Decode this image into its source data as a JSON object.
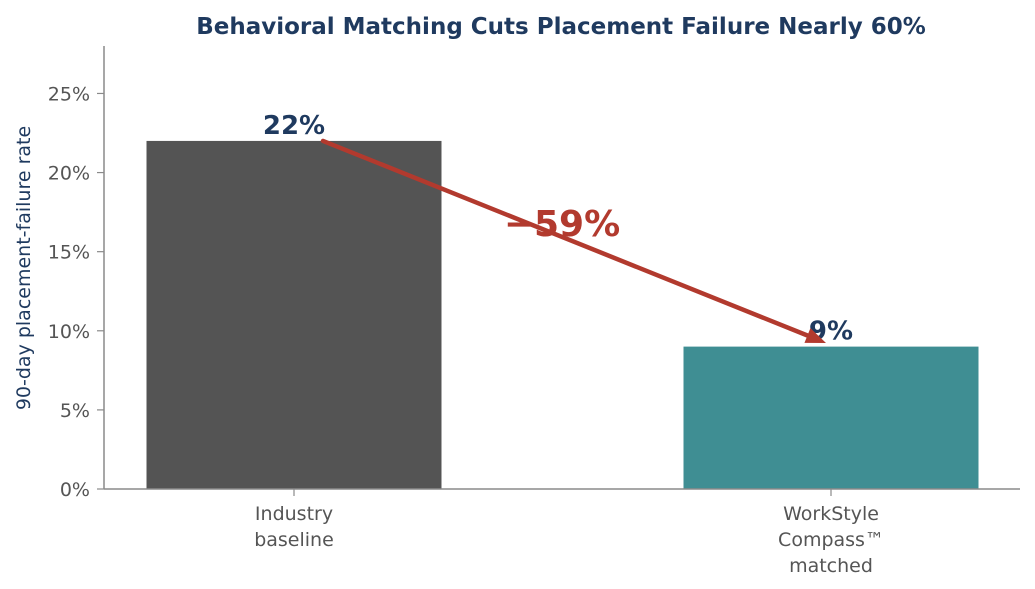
{
  "chart_data": {
    "type": "bar",
    "title": "Behavioral Matching Cuts Placement Failure Nearly 60%",
    "ylabel": "90-day placement-failure rate",
    "xlabel": "",
    "categories": [
      [
        "Industry",
        "baseline"
      ],
      [
        "WorkStyle",
        "Compass™",
        "matched"
      ]
    ],
    "values": [
      22,
      9
    ],
    "value_labels": [
      "22%",
      "9%"
    ],
    "ylim": [
      0,
      28
    ],
    "yticks": [
      0,
      5,
      10,
      15,
      20,
      25
    ],
    "ytick_labels": [
      "0%",
      "5%",
      "10%",
      "15%",
      "20%",
      "25%"
    ],
    "grid": false,
    "annotation": {
      "text": "−59%",
      "from_value": 22,
      "to_value": 9.8
    },
    "colors": {
      "bars": [
        "#545454",
        "#3f8e93"
      ],
      "title": "#1f3a5f",
      "value_label": "#1f3a5f",
      "annotation": "#b23a2e",
      "axis": "#8a8a8a",
      "tick_text": "#555555",
      "ylabel": "#1f3a5f"
    }
  }
}
